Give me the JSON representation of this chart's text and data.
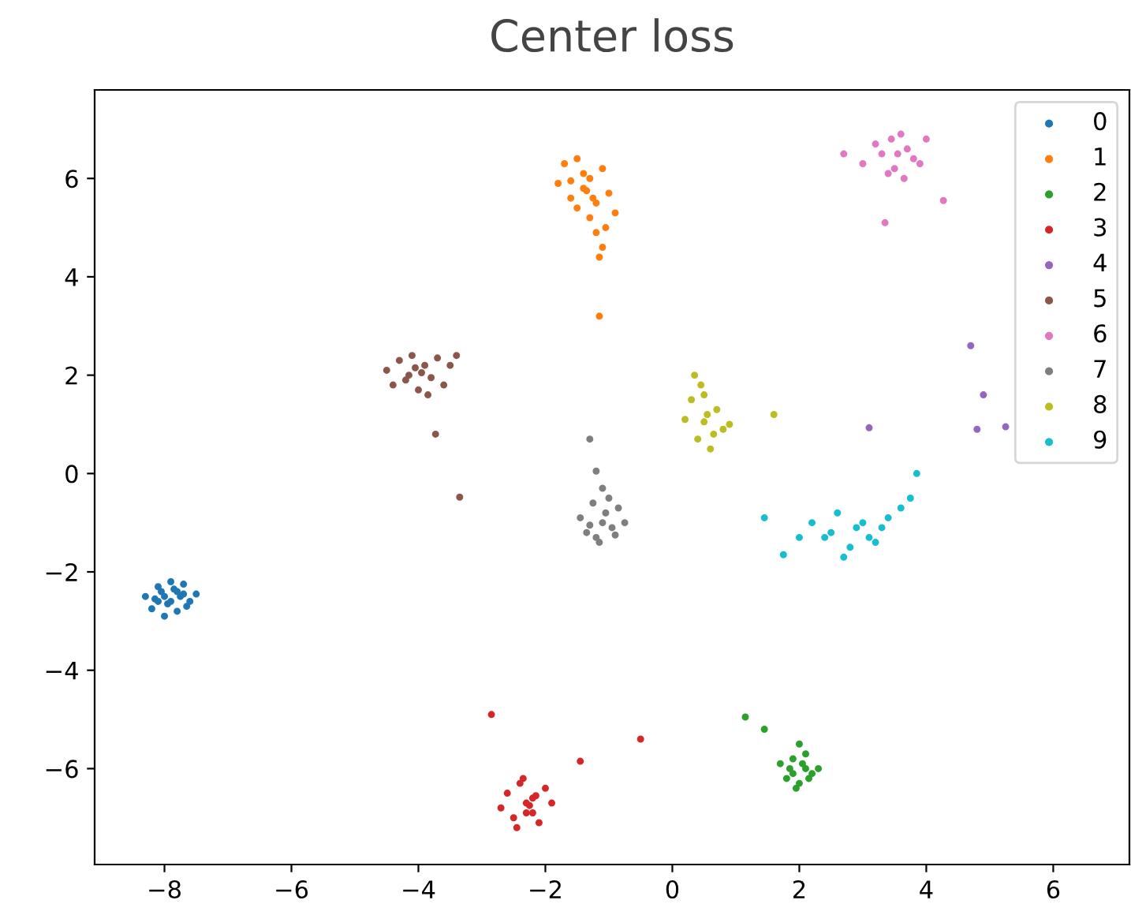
{
  "chart_data": {
    "type": "scatter",
    "title": "Center loss",
    "xlim": [
      -9.1,
      7.2
    ],
    "ylim": [
      -7.95,
      7.8
    ],
    "xticks": [
      -8,
      -6,
      -4,
      -2,
      0,
      2,
      4,
      6
    ],
    "yticks": [
      -6,
      -4,
      -2,
      0,
      2,
      4,
      6
    ],
    "grid": false,
    "legend": "top right",
    "marker": "circle",
    "series": [
      {
        "name": "0",
        "color": "#1f77b4",
        "x": [
          -8.3,
          -8.2,
          -8.1,
          -8.0,
          -7.9,
          -7.8,
          -7.7,
          -7.6,
          -7.5,
          -8.15,
          -8.05,
          -7.95,
          -7.85,
          -7.75,
          -7.65,
          -8.0,
          -7.9,
          -7.8,
          -8.1,
          -7.7
        ],
        "values": [
          -2.5,
          -2.75,
          -2.3,
          -2.9,
          -2.2,
          -2.8,
          -2.25,
          -2.6,
          -2.45,
          -2.55,
          -2.4,
          -2.65,
          -2.35,
          -2.5,
          -2.7,
          -2.5,
          -2.6,
          -2.4,
          -2.6,
          -2.45
        ]
      },
      {
        "name": "1",
        "color": "#ff7f0e",
        "x": [
          -1.8,
          -1.7,
          -1.6,
          -1.5,
          -1.4,
          -1.3,
          -1.2,
          -1.1,
          -1.0,
          -0.9,
          -1.5,
          -1.4,
          -1.3,
          -1.2,
          -1.1,
          -1.15,
          -1.05,
          -1.25,
          -1.15,
          -1.6,
          -1.35
        ],
        "values": [
          5.9,
          6.3,
          5.6,
          6.4,
          5.8,
          6.0,
          5.5,
          6.2,
          5.7,
          5.3,
          5.4,
          6.1,
          5.2,
          4.9,
          4.6,
          4.4,
          5.0,
          5.6,
          3.2,
          5.95,
          5.75
        ]
      },
      {
        "name": "2",
        "color": "#2ca02c",
        "x": [
          1.15,
          1.45,
          1.7,
          1.8,
          1.9,
          2.0,
          2.1,
          2.2,
          2.3,
          1.85,
          1.95,
          2.05,
          2.15,
          2.0,
          1.9,
          2.1
        ],
        "values": [
          -4.95,
          -5.2,
          -5.9,
          -6.2,
          -5.8,
          -6.3,
          -5.7,
          -6.1,
          -6.0,
          -6.0,
          -6.4,
          -5.9,
          -6.2,
          -5.5,
          -6.1,
          -6.0
        ]
      },
      {
        "name": "3",
        "color": "#d62728",
        "x": [
          -2.85,
          -0.5,
          -1.45,
          -2.7,
          -2.6,
          -2.5,
          -2.4,
          -2.3,
          -2.2,
          -2.1,
          -2.0,
          -1.9,
          -2.35,
          -2.25,
          -2.45,
          -2.15,
          -2.3,
          -2.2
        ],
        "values": [
          -4.9,
          -5.4,
          -5.85,
          -6.8,
          -6.5,
          -7.0,
          -6.3,
          -6.9,
          -6.6,
          -7.1,
          -6.4,
          -6.7,
          -6.2,
          -6.75,
          -7.2,
          -6.55,
          -6.7,
          -6.9
        ]
      },
      {
        "name": "4",
        "color": "#9467bd",
        "x": [
          3.1,
          4.7,
          4.9,
          4.8,
          5.25
        ],
        "values": [
          0.93,
          2.6,
          1.6,
          0.9,
          0.95
        ]
      },
      {
        "name": "5",
        "color": "#8c564b",
        "x": [
          -4.5,
          -4.4,
          -4.3,
          -4.2,
          -4.1,
          -4.0,
          -3.9,
          -3.8,
          -3.7,
          -3.6,
          -3.5,
          -3.4,
          -4.15,
          -3.95,
          -3.73,
          -3.35,
          -4.05,
          -3.85
        ],
        "values": [
          2.1,
          1.8,
          2.3,
          1.9,
          2.4,
          1.7,
          2.2,
          1.95,
          2.35,
          1.8,
          2.2,
          2.4,
          2.0,
          2.05,
          0.8,
          -0.48,
          2.15,
          1.6
        ]
      },
      {
        "name": "6",
        "color": "#e377c2",
        "x": [
          2.7,
          3.35,
          4.27,
          3.0,
          3.2,
          3.4,
          3.6,
          3.8,
          4.0,
          3.3,
          3.5,
          3.7,
          3.9,
          3.55,
          3.45,
          3.65
        ],
        "values": [
          6.5,
          5.1,
          5.55,
          6.3,
          6.7,
          6.1,
          6.9,
          6.4,
          6.8,
          6.5,
          6.2,
          6.6,
          6.3,
          6.5,
          6.8,
          6.0
        ]
      },
      {
        "name": "7",
        "color": "#7f7f7f",
        "x": [
          -1.3,
          -1.2,
          -1.1,
          -1.45,
          -1.35,
          -1.25,
          -1.15,
          -1.05,
          -0.95,
          -0.85,
          -0.75,
          -1.2,
          -1.0,
          -0.9,
          -1.1,
          -1.3
        ],
        "values": [
          0.7,
          0.05,
          -0.3,
          -0.9,
          -1.2,
          -0.6,
          -1.4,
          -0.8,
          -1.1,
          -0.7,
          -1.0,
          -1.3,
          -0.5,
          -1.25,
          -1.0,
          -1.05
        ]
      },
      {
        "name": "8",
        "color": "#bcbd22",
        "x": [
          0.35,
          1.6,
          0.2,
          0.3,
          0.4,
          0.5,
          0.6,
          0.7,
          0.8,
          0.9,
          0.45,
          0.55,
          0.65,
          0.5
        ],
        "values": [
          2.0,
          1.2,
          1.1,
          1.5,
          0.7,
          1.6,
          0.5,
          1.3,
          0.9,
          1.0,
          1.8,
          1.2,
          0.8,
          1.05
        ]
      },
      {
        "name": "9",
        "color": "#17becf",
        "x": [
          1.45,
          3.85,
          1.75,
          2.2,
          2.4,
          2.6,
          2.8,
          3.0,
          3.2,
          3.4,
          3.6,
          2.5,
          2.7,
          2.9,
          3.1,
          3.3,
          2.0,
          3.75
        ],
        "values": [
          -0.9,
          0.0,
          -1.65,
          -1.0,
          -1.3,
          -0.8,
          -1.5,
          -1.0,
          -1.4,
          -0.9,
          -0.7,
          -1.2,
          -1.7,
          -1.1,
          -1.3,
          -1.1,
          -1.3,
          -0.5
        ]
      }
    ]
  }
}
